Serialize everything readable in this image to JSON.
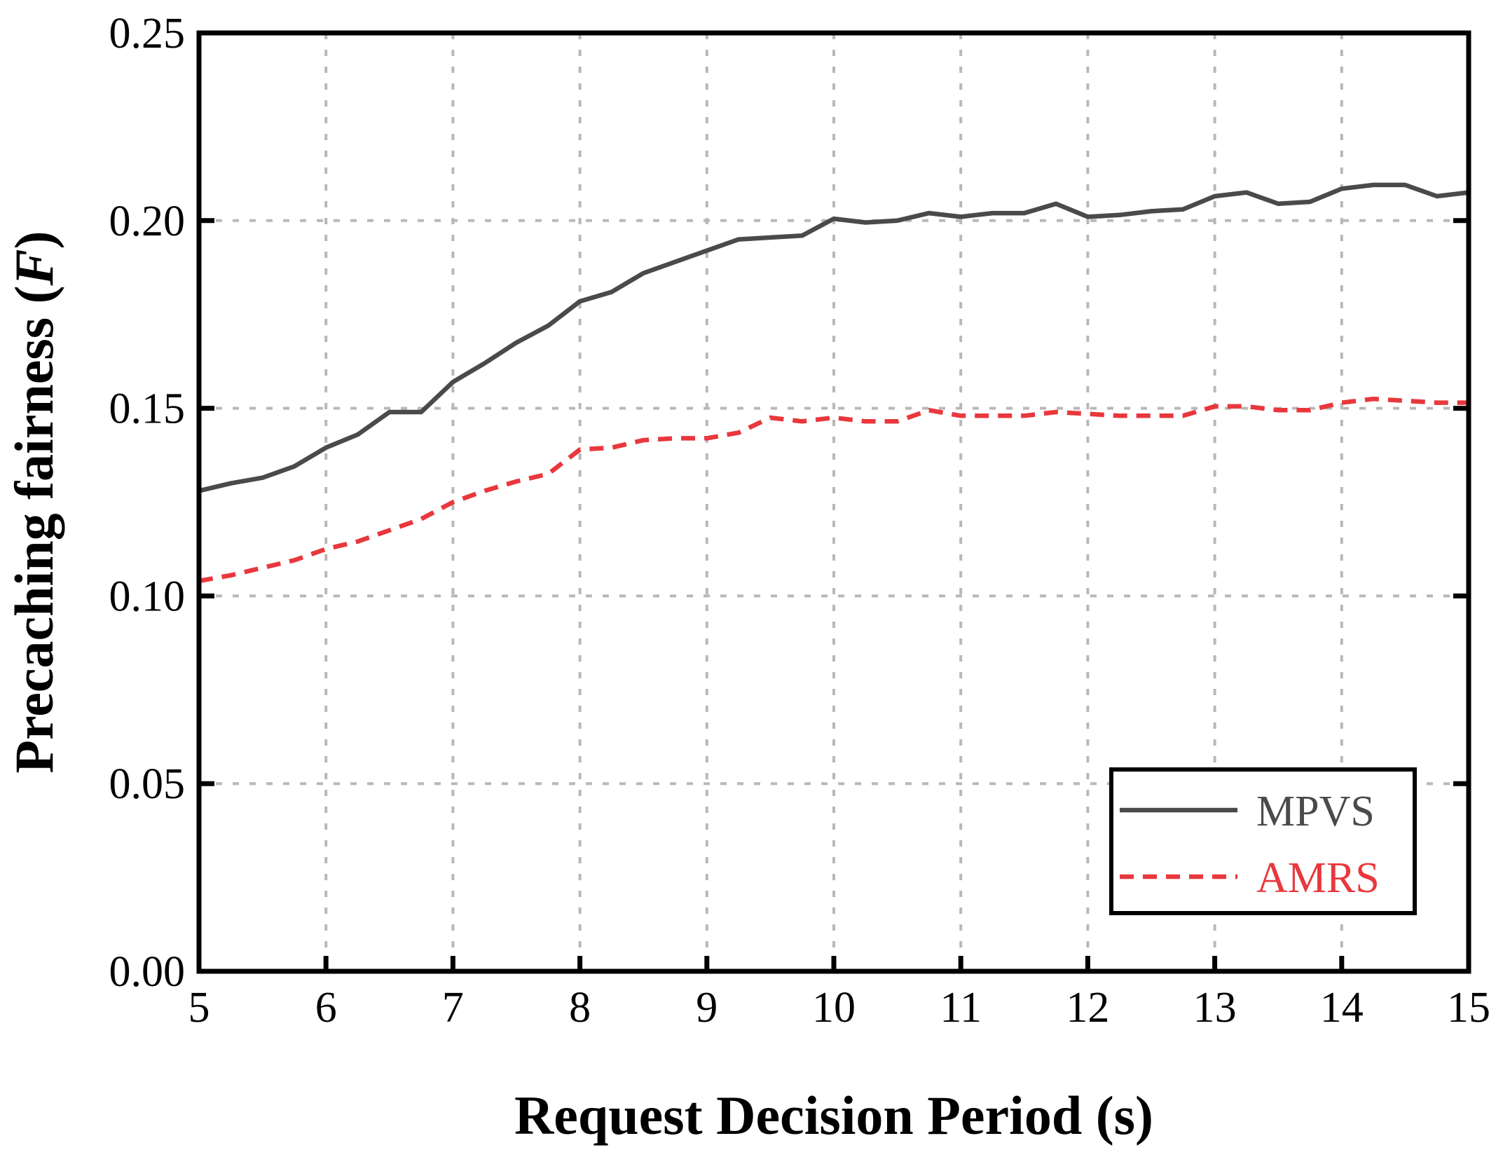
{
  "chart_data": {
    "type": "line",
    "title": "",
    "xlabel": "Request Decision Period (s)",
    "ylabel": "Precaching fairness (",
    "ylabel_var": "F",
    "ylabel_close": ")",
    "xlim": [
      5,
      15
    ],
    "ylim": [
      0,
      0.25
    ],
    "xticks": [
      "5",
      "6",
      "7",
      "8",
      "9",
      "10",
      "11",
      "12",
      "13",
      "14",
      "15"
    ],
    "yticks": [
      "0.00",
      "0.05",
      "0.10",
      "0.15",
      "0.20",
      "0.25"
    ],
    "grid": true,
    "legend_position": "bottom-right",
    "x": [
      5,
      5.25,
      5.5,
      5.75,
      6,
      6.25,
      6.5,
      6.75,
      7,
      7.25,
      7.5,
      7.75,
      8,
      8.25,
      8.5,
      8.75,
      9,
      9.25,
      9.5,
      9.75,
      10,
      10.25,
      10.5,
      10.75,
      11,
      11.25,
      11.5,
      11.75,
      12,
      12.25,
      12.5,
      12.75,
      13,
      13.25,
      13.5,
      13.75,
      14,
      14.25,
      14.5,
      14.75,
      15
    ],
    "series": [
      {
        "name": "MPVS",
        "color": "#4a4a4a",
        "dash": "solid",
        "values": [
          0.128,
          0.13,
          0.1315,
          0.1345,
          0.1395,
          0.143,
          0.149,
          0.149,
          0.157,
          0.162,
          0.1675,
          0.172,
          0.1785,
          0.181,
          0.186,
          0.189,
          0.192,
          0.195,
          0.1955,
          0.196,
          0.2005,
          0.1995,
          0.2,
          0.202,
          0.201,
          0.202,
          0.202,
          0.2045,
          0.201,
          0.2015,
          0.2025,
          0.203,
          0.2065,
          0.2075,
          0.2045,
          0.205,
          0.2085,
          0.2095,
          0.2095,
          0.2065,
          0.2075
        ]
      },
      {
        "name": "AMRS",
        "color": "#e8383d",
        "dash": "dashed",
        "values": [
          0.104,
          0.1055,
          0.1075,
          0.1095,
          0.1125,
          0.1145,
          0.1175,
          0.1205,
          0.125,
          0.128,
          0.1305,
          0.1325,
          0.139,
          0.1395,
          0.1415,
          0.142,
          0.142,
          0.1435,
          0.1475,
          0.1465,
          0.1475,
          0.1465,
          0.1465,
          0.1495,
          0.148,
          0.148,
          0.148,
          0.149,
          0.1485,
          0.148,
          0.148,
          0.148,
          0.1505,
          0.1505,
          0.1495,
          0.1495,
          0.1515,
          0.1525,
          0.152,
          0.1515,
          0.1515
        ]
      }
    ]
  }
}
